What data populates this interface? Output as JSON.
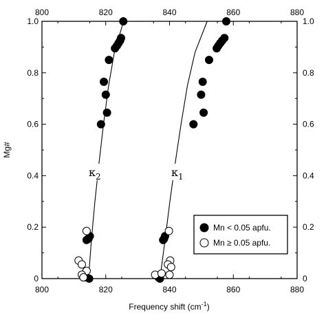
{
  "chart_data": {
    "type": "scatter",
    "xlabel": "Frequency shift (cm",
    "xlabel_superscript": "-1",
    "xlabel_suffix": ")",
    "ylabel": "Mg#",
    "xlim": [
      800,
      880
    ],
    "ylim": [
      0,
      1.0
    ],
    "x_ticks": [
      800,
      820,
      840,
      860,
      880
    ],
    "y_ticks": [
      0,
      0.2,
      0.4,
      0.6,
      0.8,
      1.0
    ],
    "x_tick_labels": [
      "800",
      "820",
      "840",
      "860",
      "880"
    ],
    "y_tick_labels": [
      "0",
      "0.2",
      "0.4",
      "0.6",
      "0.8",
      "1.0"
    ],
    "top_axis_labels": true,
    "right_axis_labels": true,
    "grid": false,
    "legend_position": "bottom-right",
    "legend": [
      {
        "label": "Mn < 0.05 apfu.",
        "marker": "filled"
      },
      {
        "label": "Mn ≥ 0.05 apfu.",
        "marker": "open"
      }
    ],
    "curves": [
      {
        "label": "κ",
        "subscript": "2",
        "points": [
          [
            814.6,
            0.0
          ],
          [
            815.5,
            0.15
          ],
          [
            816.6,
            0.3
          ],
          [
            817.9,
            0.45
          ],
          [
            819.3,
            0.6
          ],
          [
            820.9,
            0.75
          ],
          [
            822.7,
            0.88
          ],
          [
            825.6,
            1.0
          ]
        ]
      },
      {
        "label": "κ",
        "subscript": "1",
        "points": [
          [
            837.0,
            0.0
          ],
          [
            838.6,
            0.15
          ],
          [
            840.1,
            0.3
          ],
          [
            841.8,
            0.45
          ],
          [
            843.6,
            0.6
          ],
          [
            845.6,
            0.75
          ],
          [
            848.0,
            0.88
          ],
          [
            851.8,
            1.0
          ]
        ]
      }
    ],
    "series": [
      {
        "name": "Mn < 0.05 apfu.",
        "marker": "filled",
        "points": [
          [
            825.5,
            1.0
          ],
          [
            824.8,
            0.935
          ],
          [
            824.5,
            0.925
          ],
          [
            824.0,
            0.915
          ],
          [
            823.5,
            0.905
          ],
          [
            822.9,
            0.895
          ],
          [
            821.0,
            0.85
          ],
          [
            819.4,
            0.765
          ],
          [
            820.0,
            0.715
          ],
          [
            820.4,
            0.645
          ],
          [
            818.5,
            0.6
          ],
          [
            815.0,
            0.165
          ],
          [
            814.6,
            0.155
          ],
          [
            814.0,
            0.15
          ],
          [
            814.8,
            0.0
          ],
          [
            813.5,
            0.005
          ],
          [
            857.8,
            1.0
          ],
          [
            857.2,
            0.935
          ],
          [
            856.5,
            0.925
          ],
          [
            855.9,
            0.915
          ],
          [
            855.3,
            0.905
          ],
          [
            854.8,
            0.895
          ],
          [
            852.4,
            0.85
          ],
          [
            850.4,
            0.765
          ],
          [
            849.9,
            0.715
          ],
          [
            850.7,
            0.645
          ],
          [
            847.5,
            0.6
          ],
          [
            838.6,
            0.165
          ],
          [
            838.3,
            0.155
          ],
          [
            838.0,
            0.15
          ],
          [
            837.0,
            0.0
          ],
          [
            836.5,
            0.005
          ]
        ]
      },
      {
        "name": "Mn ≥ 0.05 apfu.",
        "marker": "open",
        "points": [
          [
            814.0,
            0.185
          ],
          [
            811.5,
            0.07
          ],
          [
            812.5,
            0.055
          ],
          [
            814.0,
            0.03
          ],
          [
            812.5,
            0.015
          ],
          [
            813.0,
            0.005
          ],
          [
            839.8,
            0.185
          ],
          [
            840.2,
            0.07
          ],
          [
            839.5,
            0.055
          ],
          [
            840.5,
            0.045
          ],
          [
            835.5,
            0.015
          ],
          [
            837.5,
            0.02
          ],
          [
            840.0,
            0.015
          ]
        ]
      }
    ]
  }
}
